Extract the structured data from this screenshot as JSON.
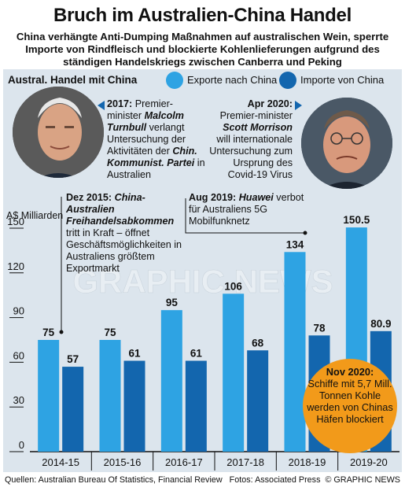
{
  "title": "Bruch im Australien-China Handel",
  "subtitle": "China verhängte Anti-Dumping Maßnahmen auf australischen Wein, sperrte Importe von Rindfleisch und blockierte Kohlenlieferungen aufgrund des ständigen Handelskriegs zwischen Canberra und Peking",
  "panel_title": "Austral. Handel mit China",
  "colors": {
    "exports": "#2ea3e3",
    "imports": "#1366ae",
    "panel": "#dce5ed",
    "highlight": "#f29a1a"
  },
  "chart_data": {
    "type": "bar",
    "ylabel": "A$ Milliarden",
    "ylim": [
      0,
      150
    ],
    "yticks": [
      0,
      30,
      60,
      90,
      120,
      150
    ],
    "grid": false,
    "categories": [
      "2014-15",
      "2015-16",
      "2016-17",
      "2017-18",
      "2018-19",
      "2019-20"
    ],
    "series": [
      {
        "name": "Exporte nach China",
        "values": [
          75,
          75,
          95,
          106,
          134,
          150.5
        ],
        "labels": [
          "75",
          "75",
          "95",
          "106",
          "134",
          "150.5"
        ]
      },
      {
        "name": "Importe von China",
        "values": [
          57,
          61,
          61,
          68,
          78,
          80.9
        ],
        "labels": [
          "57",
          "61",
          "61",
          "68",
          "78",
          "80.9"
        ]
      }
    ]
  },
  "annotations": {
    "a2017": {
      "year": "2017:",
      "t1": " Premier-",
      "t2": "minister ",
      "name": "Malcolm Turnbull",
      "t3": " verlangt Untersuchung der Aktivitäten der ",
      "party": "Chin. Kommunist. Partei",
      "t4": " in Australien"
    },
    "a2020apr": {
      "year": "Apr 2020:",
      "t1": " Premier-minister ",
      "name": "Scott Morrison",
      "t2": " will internationale Untersuchung zum Ursprung des Covid-19 Virus"
    },
    "a2015": {
      "date": "Dez 2015:",
      "treaty": " China-Australien Freihandelsabkommen",
      "t1": " tritt in Kraft – öffnet Geschäftsmöglichkeiten in Australiens größtem Exportmarkt"
    },
    "a2019": {
      "date": "Aug 2019:",
      "company": " Huawei",
      "t1": " verbot für Australiens 5G Mobilfunknetz"
    },
    "nov2020": {
      "date": "Nov 2020:",
      "t1": "Schiffe mit 5,7 Mill. Tonnen Kohle werden von Chinas Häfen blockiert"
    }
  },
  "portraits": {
    "left": {
      "icon": "portrait-turnbull-icon",
      "bg": "#3a3a3a",
      "skin": "#d9a384"
    },
    "right": {
      "icon": "portrait-morrison-icon",
      "bg": "#2b3947",
      "skin": "#d8997c"
    }
  },
  "watermark": "GRAPHIC NEWS",
  "footer": {
    "sources": "Quellen: Australian Bureau Of Statistics, Financial Review",
    "photos": "Fotos: Associated Press",
    "credit": "© GRAPHIC NEWS"
  }
}
